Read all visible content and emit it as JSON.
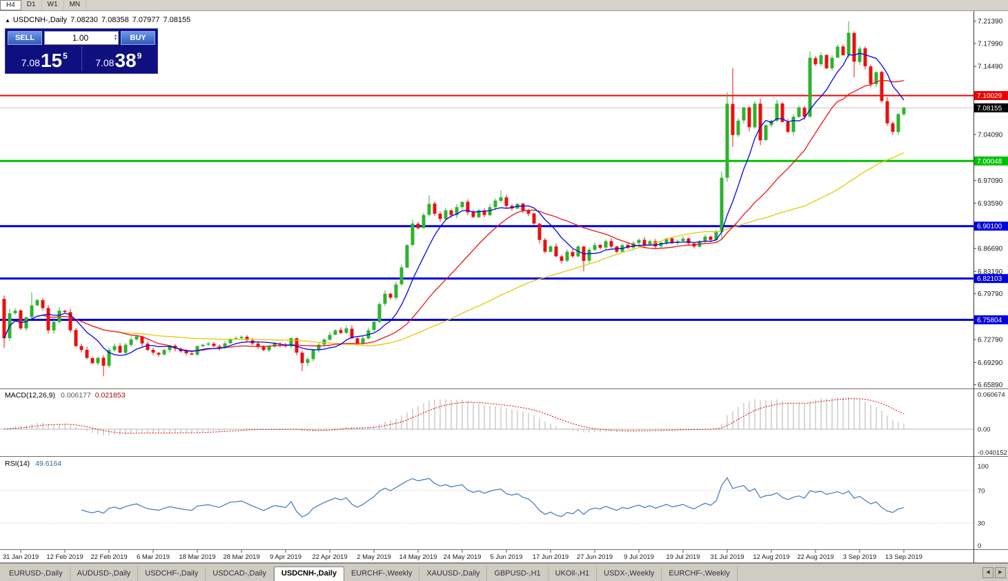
{
  "toolbar": {
    "periods": [
      {
        "label": "H4",
        "active": true
      },
      {
        "label": "D1",
        "active": false
      },
      {
        "label": "W1",
        "active": false
      },
      {
        "label": "MN",
        "active": false
      }
    ]
  },
  "header": {
    "collapse": "▲",
    "title": "USDCNH-,Daily",
    "ohlc": [
      "7.08230",
      "7.08358",
      "7.07977",
      "7.08155"
    ]
  },
  "trade_panel": {
    "sell_label": "SELL",
    "buy_label": "BUY",
    "volume": "1.00",
    "spin_up": "▴",
    "spin_down": "▾",
    "sell_price": {
      "prefix": "7.08",
      "big": "15",
      "sup": "5"
    },
    "buy_price": {
      "prefix": "7.08",
      "big": "38",
      "sup": "9"
    }
  },
  "indicators": {
    "macd_label": "MACD(12,26,9)",
    "macd_main": "0.006177",
    "macd_signal": "0.021853",
    "rsi_label": "RSI(14)",
    "rsi_value": "49.6164"
  },
  "chart_data": {
    "type": "candlestick",
    "symbol": "USDCNH",
    "timeframe": "Daily",
    "first_open": 6.79,
    "closes": [
      6.73,
      6.768,
      6.772,
      6.745,
      6.762,
      6.78,
      6.788,
      6.776,
      6.742,
      6.755,
      6.772,
      6.77,
      6.742,
      6.718,
      6.712,
      6.7,
      6.692,
      6.7,
      6.688,
      6.712,
      6.718,
      6.708,
      6.72,
      6.728,
      6.733,
      6.722,
      6.712,
      6.708,
      6.705,
      6.712,
      6.718,
      6.714,
      6.71,
      6.707,
      6.705,
      6.718,
      6.72,
      6.722,
      6.718,
      6.715,
      6.722,
      6.729,
      6.73,
      6.732,
      6.727,
      6.722,
      6.717,
      6.712,
      6.717,
      6.722,
      6.72,
      6.718,
      6.73,
      6.708,
      6.692,
      6.698,
      6.712,
      6.72,
      6.728,
      6.735,
      6.742,
      6.738,
      6.745,
      6.73,
      6.722,
      6.73,
      6.742,
      6.755,
      6.782,
      6.798,
      6.792,
      6.812,
      6.838,
      6.872,
      6.905,
      6.898,
      6.918,
      6.935,
      6.92,
      6.912,
      6.925,
      6.918,
      6.93,
      6.938,
      6.922,
      6.915,
      6.925,
      6.918,
      6.93,
      6.94,
      6.945,
      6.932,
      6.928,
      6.935,
      6.925,
      6.92,
      6.905,
      6.88,
      6.862,
      6.87,
      6.855,
      6.848,
      6.862,
      6.855,
      6.87,
      6.848,
      6.865,
      6.872,
      6.868,
      6.878,
      6.87,
      6.862,
      6.872,
      6.868,
      6.875,
      6.88,
      6.872,
      6.878,
      6.87,
      6.876,
      6.882,
      6.875,
      6.878,
      6.882,
      6.875,
      6.87,
      6.878,
      6.885,
      6.88,
      6.892,
      6.975,
      7.088,
      7.04,
      7.062,
      7.082,
      7.052,
      7.088,
      7.032,
      7.055,
      7.062,
      7.088,
      7.06,
      7.045,
      7.068,
      7.082,
      7.068,
      7.158,
      7.148,
      7.162,
      7.142,
      7.158,
      7.175,
      7.162,
      7.196,
      7.152,
      7.172,
      7.145,
      7.118,
      7.136,
      7.092,
      7.058,
      7.045,
      7.072,
      7.0816
    ],
    "wick_overrides": {
      "0": {
        "h": 6.795,
        "l": 6.715
      },
      "5": {
        "h": 6.8
      },
      "18": {
        "l": 6.672
      },
      "54": {
        "l": 6.68
      },
      "77": {
        "h": 6.948
      },
      "90": {
        "h": 6.956
      },
      "105": {
        "l": 6.832
      },
      "131": {
        "h": 7.105
      },
      "132": {
        "h": 7.142,
        "l": 7.022
      },
      "146": {
        "h": 7.168
      },
      "153": {
        "h": 7.2139
      },
      "154": {
        "l": 7.128
      },
      "161": {
        "l": 7.0405
      }
    },
    "date_ticks": {
      "indices": [
        3,
        11,
        19,
        27,
        35,
        43,
        51,
        59,
        67,
        75,
        83,
        91,
        99,
        107,
        115,
        123,
        131,
        139,
        147,
        155,
        163
      ],
      "labels": [
        "31 Jan 2019",
        "12 Feb 2019",
        "22 Feb 2019",
        "6 Mar 2019",
        "18 Mar 2019",
        "28 Mar 2019",
        "9 Apr 2019",
        "22 Apr 2019",
        "2 May 2019",
        "14 May 2019",
        "24 May 2019",
        "5 Jun 2019",
        "17 Jun 2019",
        "27 Jun 2019",
        "9 Jul 2019",
        "19 Jul 2019",
        "31 Jul 2019",
        "12 Aug 2019",
        "22 Aug 2019",
        "3 Sep 2019",
        "13 Sep 2019"
      ]
    },
    "y_axis_ticks": [
      7.2139,
      7.1799,
      7.1449,
      7.0409,
      6.9709,
      6.9359,
      6.8669,
      6.8319,
      6.7979,
      6.7279,
      6.6929,
      6.6589
    ],
    "levels": [
      {
        "price": 7.10029,
        "label": "7.10029",
        "color": "#ee0000",
        "width": 2
      },
      {
        "price": 7.00048,
        "label": "7.00048",
        "color": "#00c000",
        "width": 3
      },
      {
        "price": 6.901,
        "label": "6.90100",
        "color": "#0000dd",
        "width": 3
      },
      {
        "price": 6.82103,
        "label": "6.82103",
        "color": "#0000dd",
        "width": 3
      },
      {
        "price": 6.75804,
        "label": "6.75804",
        "color": "#0000dd",
        "width": 3
      }
    ],
    "current_price": {
      "price": 7.08155,
      "label": "7.08155",
      "bg": "#000000"
    },
    "moving_averages": [
      {
        "period": 8,
        "color": "#0000ee"
      },
      {
        "period": 21,
        "color": "#ee1111"
      },
      {
        "period": 55,
        "color": "#e3c800"
      }
    ],
    "macd_panel": {
      "axis": [
        {
          "v": 0.060674,
          "label": "0.060674"
        },
        {
          "v": 0.0,
          "label": "0.00"
        },
        {
          "v": -0.040152,
          "label": "-0.040152"
        }
      ],
      "hist_color": "#b0b0b0",
      "signal_color": "#cc0000"
    },
    "rsi_panel": {
      "axis": [
        {
          "v": 100,
          "label": "100"
        },
        {
          "v": 70,
          "label": "70"
        },
        {
          "v": 30,
          "label": "30"
        },
        {
          "v": 0,
          "label": "0"
        }
      ],
      "levels": [
        70,
        30
      ],
      "line_color": "#3f76bb"
    },
    "candle_colors": {
      "up": "#2db32d",
      "down": "#e81010"
    }
  },
  "tabs": {
    "scroll_left": "◀",
    "scroll_right": "▶",
    "items": [
      {
        "label": "EURUSD-,Daily",
        "active": false
      },
      {
        "label": "AUDUSD-,Daily",
        "active": false
      },
      {
        "label": "USDCHF-,Daily",
        "active": false
      },
      {
        "label": "USDCAD-,Daily",
        "active": false
      },
      {
        "label": "USDCNH-,Daily",
        "active": true
      },
      {
        "label": "EURCHF-,Weekly",
        "active": false
      },
      {
        "label": "XAUUSD-,Daily",
        "active": false
      },
      {
        "label": "GBPUSD-,H1",
        "active": false
      },
      {
        "label": "UKOil-,H1",
        "active": false
      },
      {
        "label": "USDX-,Weekly",
        "active": false
      },
      {
        "label": "EURCHF-,Weekly",
        "active": false
      }
    ]
  }
}
